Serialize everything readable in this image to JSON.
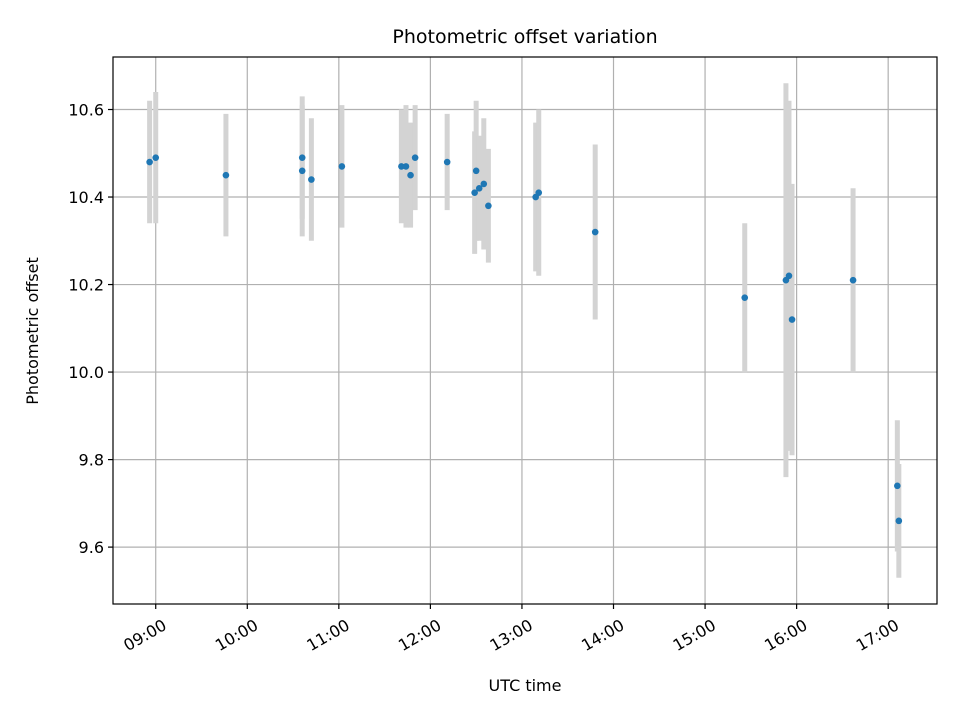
{
  "chart_data": {
    "type": "scatter",
    "title": "Photometric offset variation",
    "xlabel": "UTC time",
    "ylabel": "Photometric offset",
    "x_ticks": [
      "09:00",
      "10:00",
      "11:00",
      "12:00",
      "13:00",
      "14:00",
      "15:00",
      "16:00",
      "17:00"
    ],
    "y_ticks": [
      "9.6",
      "9.8",
      "10.0",
      "10.2",
      "10.4",
      "10.6"
    ],
    "xlim": [
      "08:32",
      "17:32"
    ],
    "ylim": [
      9.47,
      10.72
    ],
    "grid": true,
    "colors": {
      "point": "#1f77b4",
      "errorbar": "#d3d3d3"
    },
    "series": [
      {
        "points": [
          {
            "x": "08:56",
            "y": 10.48,
            "err": 0.14
          },
          {
            "x": "09:00",
            "y": 10.49,
            "err": 0.15
          },
          {
            "x": "09:46",
            "y": 10.45,
            "err": 0.14
          },
          {
            "x": "10:36",
            "y": 10.49,
            "err": 0.14
          },
          {
            "x": "10:36",
            "y": 10.46,
            "err": 0.15
          },
          {
            "x": "10:42",
            "y": 10.44,
            "err": 0.14
          },
          {
            "x": "11:02",
            "y": 10.47,
            "err": 0.14
          },
          {
            "x": "11:41",
            "y": 10.47,
            "err": 0.13
          },
          {
            "x": "11:44",
            "y": 10.47,
            "err": 0.14
          },
          {
            "x": "11:47",
            "y": 10.45,
            "err": 0.12
          },
          {
            "x": "11:50",
            "y": 10.49,
            "err": 0.12
          },
          {
            "x": "12:11",
            "y": 10.48,
            "err": 0.11
          },
          {
            "x": "12:29",
            "y": 10.41,
            "err": 0.14
          },
          {
            "x": "12:30",
            "y": 10.46,
            "err": 0.16
          },
          {
            "x": "12:32",
            "y": 10.42,
            "err": 0.12
          },
          {
            "x": "12:35",
            "y": 10.43,
            "err": 0.15
          },
          {
            "x": "12:38",
            "y": 10.38,
            "err": 0.13
          },
          {
            "x": "13:09",
            "y": 10.4,
            "err": 0.17
          },
          {
            "x": "13:11",
            "y": 10.41,
            "err": 0.19
          },
          {
            "x": "13:48",
            "y": 10.32,
            "err": 0.2
          },
          {
            "x": "15:26",
            "y": 10.17,
            "err": 0.17
          },
          {
            "x": "15:53",
            "y": 10.21,
            "err": 0.45
          },
          {
            "x": "15:55",
            "y": 10.22,
            "err": 0.4
          },
          {
            "x": "15:57",
            "y": 10.12,
            "err": 0.31
          },
          {
            "x": "16:37",
            "y": 10.21,
            "err": 0.21
          },
          {
            "x": "17:06",
            "y": 9.74,
            "err": 0.15
          },
          {
            "x": "17:07",
            "y": 9.66,
            "err": 0.13
          }
        ]
      }
    ]
  }
}
